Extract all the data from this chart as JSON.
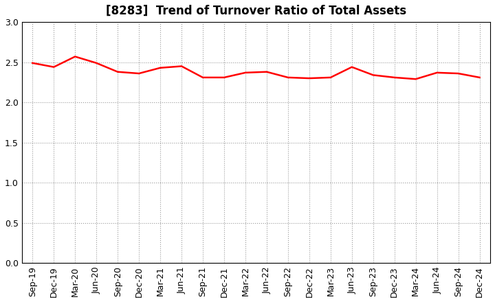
{
  "title": "[8283]  Trend of Turnover Ratio of Total Assets",
  "x_labels": [
    "Sep-19",
    "Dec-19",
    "Mar-20",
    "Jun-20",
    "Sep-20",
    "Dec-20",
    "Mar-21",
    "Jun-21",
    "Sep-21",
    "Dec-21",
    "Mar-22",
    "Jun-22",
    "Sep-22",
    "Dec-22",
    "Mar-23",
    "Jun-23",
    "Sep-23",
    "Dec-23",
    "Mar-24",
    "Jun-24",
    "Sep-24",
    "Dec-24"
  ],
  "values": [
    2.49,
    2.44,
    2.57,
    2.49,
    2.38,
    2.36,
    2.43,
    2.45,
    2.31,
    2.31,
    2.37,
    2.38,
    2.31,
    2.3,
    2.31,
    2.44,
    2.34,
    2.31,
    2.29,
    2.37,
    2.36,
    2.31
  ],
  "line_color": "#ff0000",
  "line_width": 1.8,
  "ylim": [
    0.0,
    3.0
  ],
  "yticks": [
    0.0,
    0.5,
    1.0,
    1.5,
    2.0,
    2.5,
    3.0
  ],
  "grid_color": "#999999",
  "bg_color": "#ffffff",
  "title_fontsize": 12,
  "tick_fontsize": 9,
  "spine_color": "#000000"
}
